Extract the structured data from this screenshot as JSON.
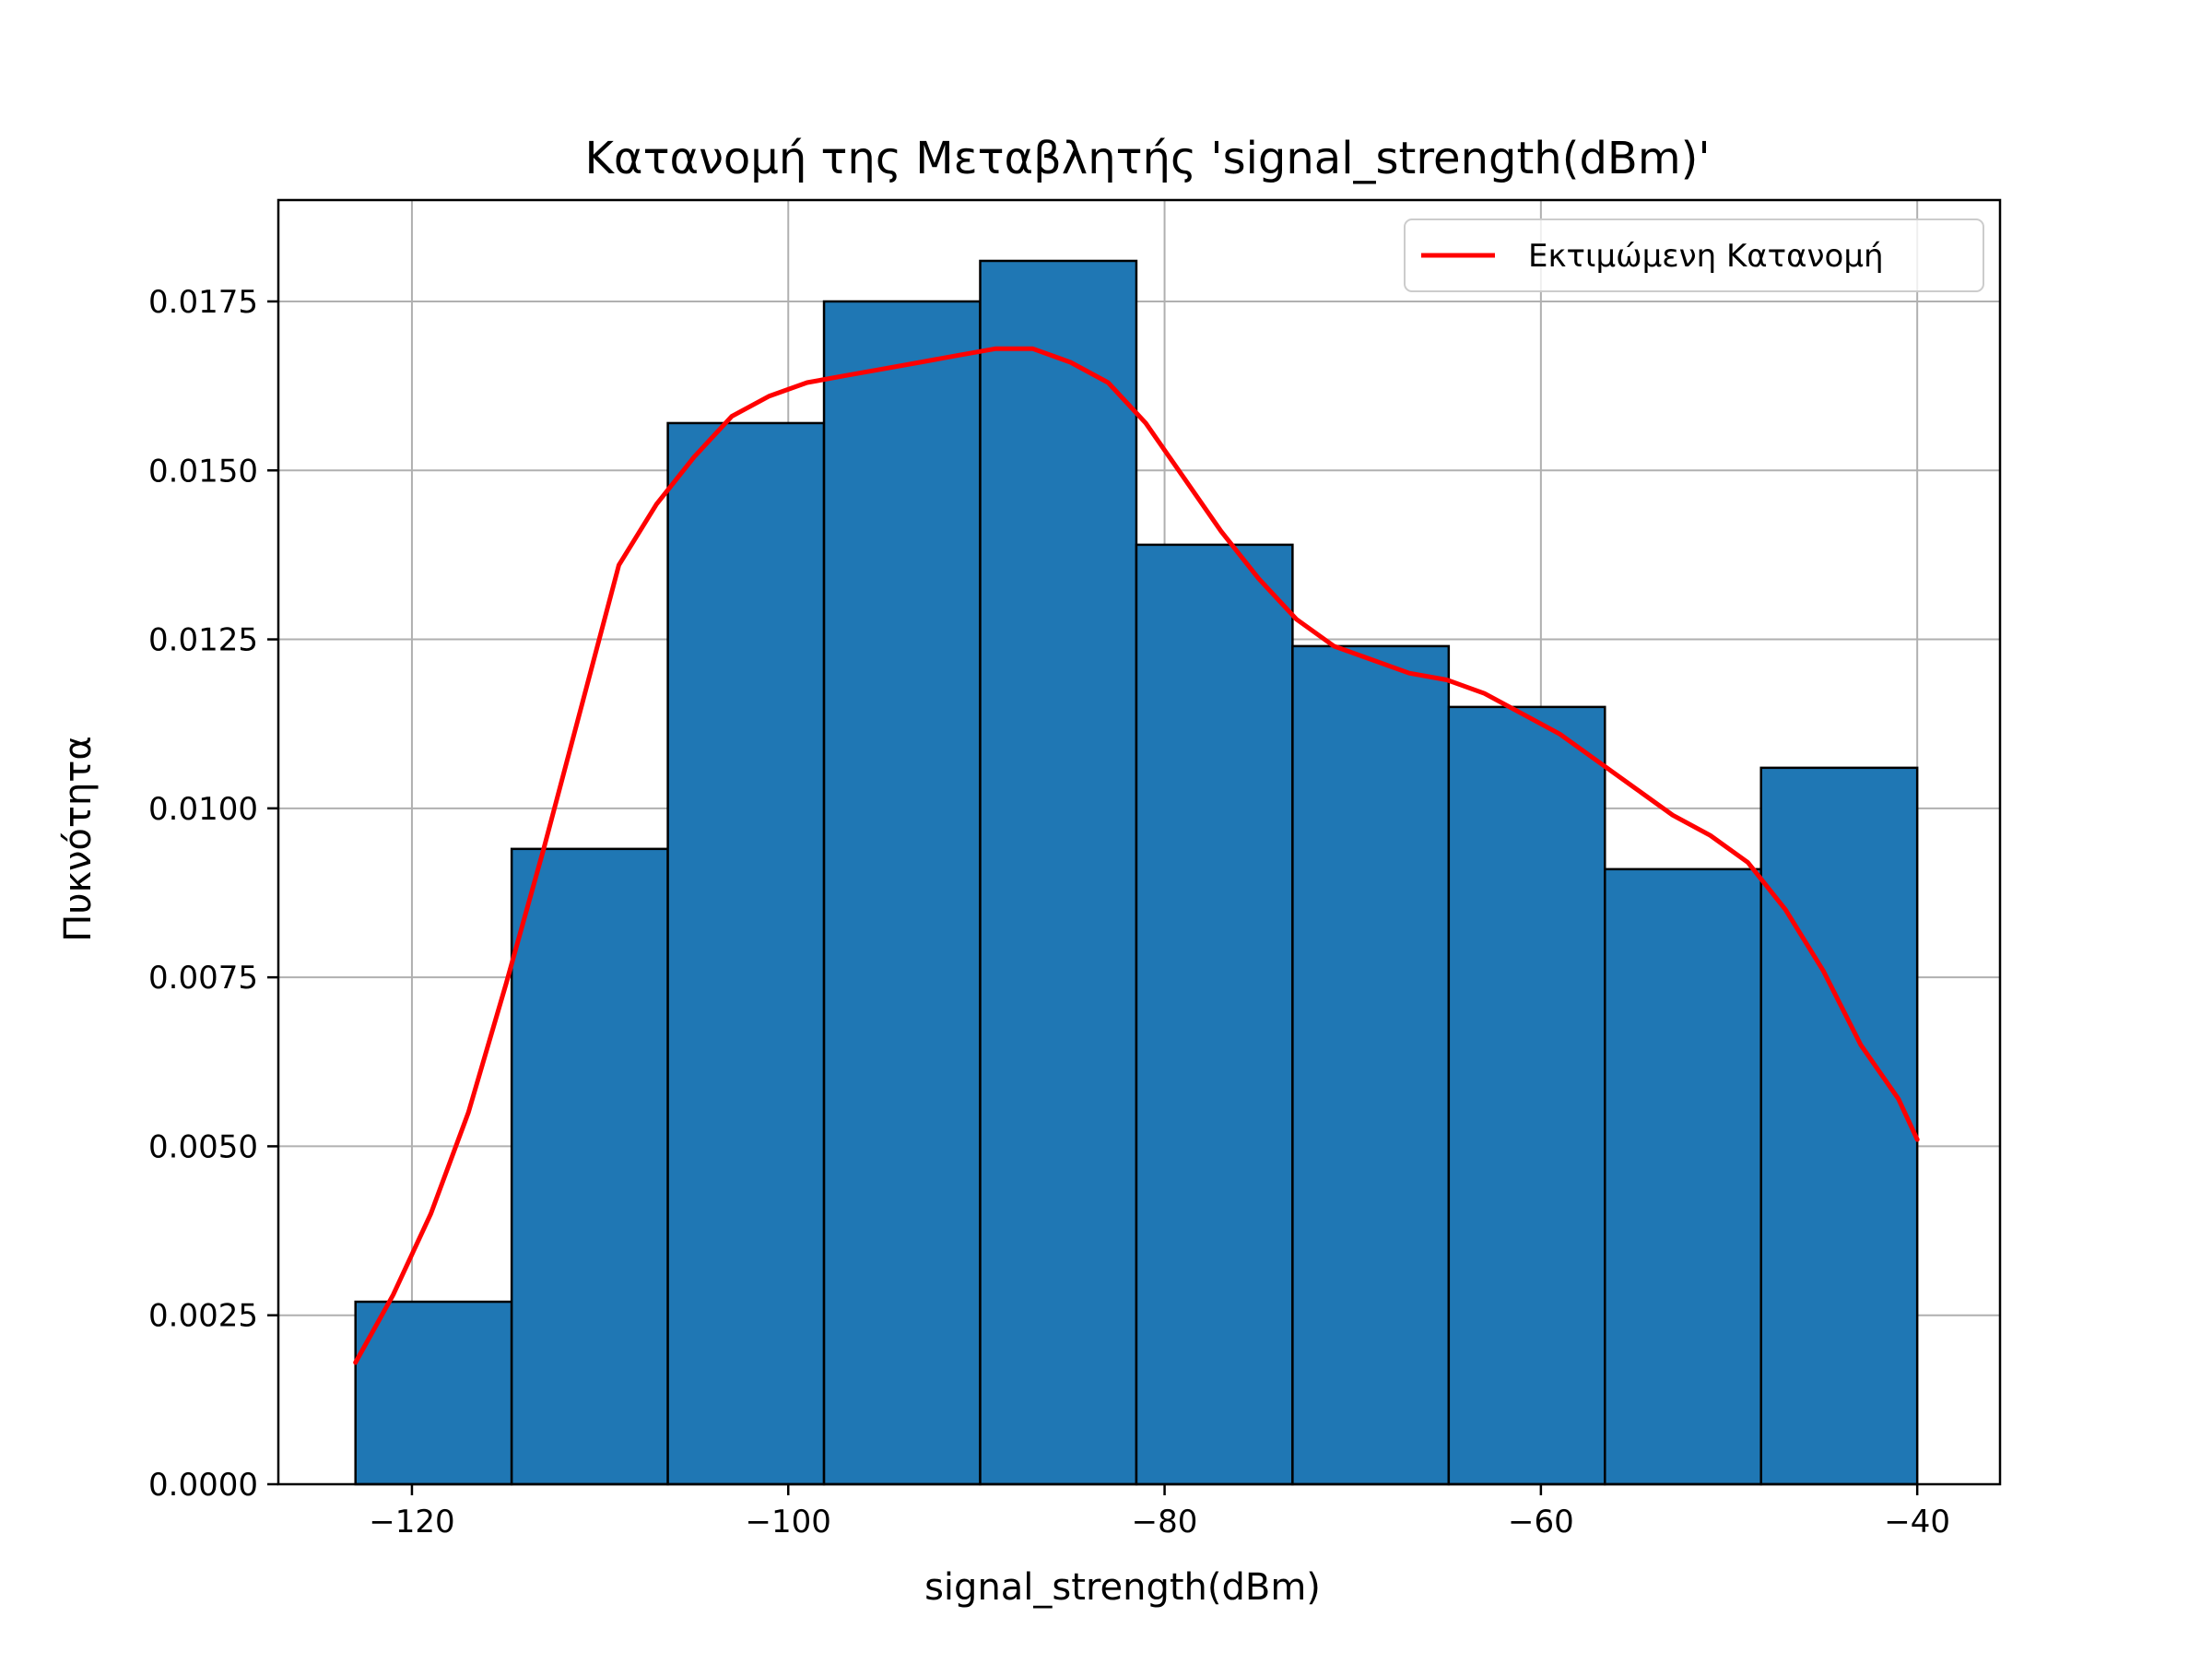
{
  "chart_data": {
    "type": "bar",
    "title": "Κατανομή της Μεταβλητής 'signal_strength(dBm)'",
    "xlabel": "signal_strength(dBm)",
    "ylabel": "Πυκνότητα",
    "xlim": [
      -127.1,
      -35.6
    ],
    "ylim": [
      0,
      0.019
    ],
    "grid": true,
    "legend_position": "top-right",
    "x_ticks": [
      -120,
      -100,
      -80,
      -60,
      -40
    ],
    "x_tick_labels": [
      "−120",
      "−100",
      "−80",
      "−60",
      "−40"
    ],
    "y_ticks": [
      0,
      0.0025,
      0.005,
      0.0075,
      0.01,
      0.0125,
      0.015,
      0.0175
    ],
    "y_tick_labels": [
      "0.0000",
      "0.0025",
      "0.0050",
      "0.0075",
      "0.0100",
      "0.0125",
      "0.0150",
      "0.0175"
    ],
    "bins": [
      {
        "x0": -123.0,
        "x1": -114.7,
        "value": 0.0027
      },
      {
        "x0": -114.7,
        "x1": -106.4,
        "value": 0.0094
      },
      {
        "x0": -106.4,
        "x1": -98.1,
        "value": 0.0157
      },
      {
        "x0": -98.1,
        "x1": -89.8,
        "value": 0.0175
      },
      {
        "x0": -89.8,
        "x1": -81.5,
        "value": 0.0181
      },
      {
        "x0": -81.5,
        "x1": -73.2,
        "value": 0.0139
      },
      {
        "x0": -73.2,
        "x1": -64.9,
        "value": 0.0124
      },
      {
        "x0": -64.9,
        "x1": -56.6,
        "value": 0.0115
      },
      {
        "x0": -56.6,
        "x1": -48.3,
        "value": 0.0091
      },
      {
        "x0": -48.3,
        "x1": -40.0,
        "value": 0.0106
      }
    ],
    "series": [
      {
        "name": "Εκτιμώμενη Κατανομή",
        "type": "line",
        "x": [
          -123,
          -121,
          -119,
          -117,
          -115,
          -113,
          -111,
          -109,
          -107,
          -105,
          -103,
          -101,
          -99,
          -97,
          -95,
          -93,
          -91,
          -89,
          -87,
          -85,
          -83,
          -81,
          -79,
          -77,
          -75,
          -73,
          -71,
          -69,
          -67,
          -65,
          -63,
          -61,
          -59,
          -57,
          -55,
          -53,
          -51,
          -49,
          -47,
          -45,
          -43,
          -41,
          -40
        ],
        "y": [
          0.0018,
          0.0028,
          0.004,
          0.0055,
          0.0074,
          0.0094,
          0.0115,
          0.0136,
          0.0145,
          0.0152,
          0.0158,
          0.0161,
          0.0163,
          0.0164,
          0.0165,
          0.0166,
          0.0167,
          0.0168,
          0.0168,
          0.0166,
          0.0163,
          0.0157,
          0.0149,
          0.0141,
          0.0134,
          0.0128,
          0.0124,
          0.0122,
          0.012,
          0.0119,
          0.0117,
          0.0114,
          0.0111,
          0.0107,
          0.0103,
          0.0099,
          0.0096,
          0.0092,
          0.0085,
          0.0076,
          0.0065,
          0.0057,
          0.0051
        ]
      }
    ],
    "colors": {
      "bar_fill": "#1f77b4",
      "bar_edge": "#000000",
      "line": "#ff0000",
      "grid": "#b0b0b0",
      "axes": "#000000"
    }
  }
}
